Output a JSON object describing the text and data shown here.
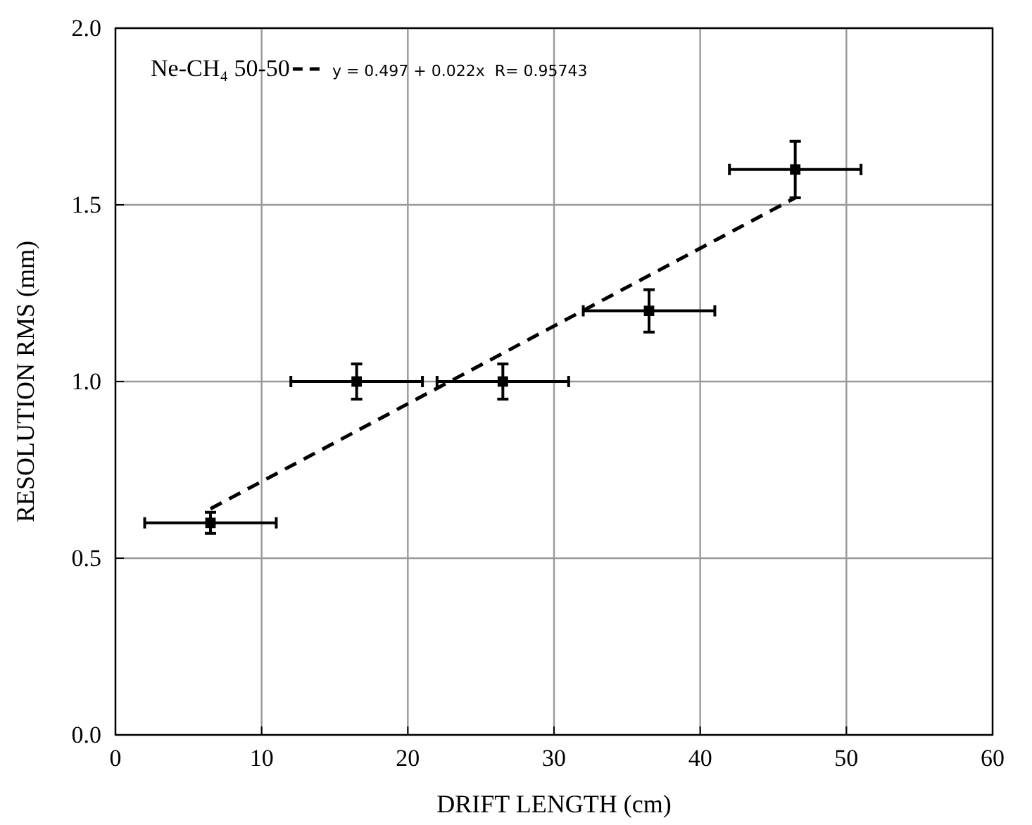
{
  "chart_data": {
    "type": "scatter",
    "xlabel": "DRIFT LENGTH (cm)",
    "ylabel": "RESOLUTION RMS (mm)",
    "legend_title": "Ne-CH₄ 50-50",
    "legend": "top left",
    "grid": true,
    "xlim": [
      0,
      60
    ],
    "xticks": [
      0,
      10,
      20,
      30,
      40,
      50,
      60
    ],
    "ylim": [
      0,
      2
    ],
    "yticks": [
      {
        "value": 0,
        "label": "0.0"
      },
      {
        "value": 0.5,
        "label": "0.5"
      },
      {
        "value": 1,
        "label": "1.0"
      },
      {
        "value": 1.5,
        "label": "1.5"
      },
      {
        "value": 2,
        "label": "2.0"
      }
    ],
    "series": [
      {
        "marker": "square",
        "color": "#000000",
        "x": [
          6.5,
          16.5,
          26.5,
          36.5,
          46.5
        ],
        "values": [
          0.6,
          1.0,
          1.0,
          1.2,
          1.6
        ],
        "errors": [
          0.03,
          0.05,
          0.05,
          0.06,
          0.08
        ],
        "xerrors": [
          4.5,
          4.5,
          4.5,
          4.5,
          4.5
        ]
      },
      {
        "type": "line",
        "name": "y = 0.497 + 0.022x  R= 0.95743",
        "color": "#000000",
        "line_style": "dashed",
        "x": [
          6.5,
          46.5
        ],
        "values": [
          0.64,
          1.52
        ]
      }
    ]
  }
}
